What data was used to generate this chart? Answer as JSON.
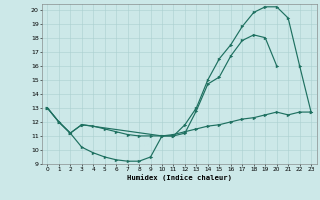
{
  "xlabel": "Humidex (Indice chaleur)",
  "bg_color": "#cce8e8",
  "line_color": "#1e7060",
  "grid_color": "#aad0d0",
  "xlim": [
    -0.5,
    23.5
  ],
  "ylim": [
    9,
    20.4
  ],
  "yticks": [
    9,
    10,
    11,
    12,
    13,
    14,
    15,
    16,
    17,
    18,
    19,
    20
  ],
  "xticks": [
    0,
    1,
    2,
    3,
    4,
    5,
    6,
    7,
    8,
    9,
    10,
    11,
    12,
    13,
    14,
    15,
    16,
    17,
    18,
    19,
    20,
    21,
    22,
    23
  ],
  "curve_low_x": [
    0,
    1,
    2,
    3,
    4,
    5,
    6,
    7,
    8,
    9,
    10,
    11,
    12,
    13,
    14,
    15,
    16,
    17,
    18,
    19,
    20
  ],
  "curve_low_y": [
    13,
    12,
    11.2,
    10.2,
    9.8,
    9.5,
    9.3,
    9.2,
    9.2,
    9.5,
    11.0,
    11.0,
    11.2,
    12.8,
    14.7,
    15.2,
    16.7,
    17.8,
    18.2,
    18.0,
    16.0
  ],
  "curve_mid_x": [
    0,
    1,
    2,
    3,
    4,
    5,
    6,
    7,
    8,
    9,
    10,
    11,
    12,
    13,
    14,
    15,
    16,
    17,
    18,
    19,
    20,
    21,
    22,
    23
  ],
  "curve_mid_y": [
    13,
    12,
    11.2,
    11.8,
    11.7,
    11.5,
    11.3,
    11.1,
    11.0,
    11.0,
    11.0,
    11.1,
    11.3,
    11.5,
    11.7,
    11.8,
    12.0,
    12.2,
    12.3,
    12.5,
    12.7,
    12.5,
    12.7,
    12.7
  ],
  "curve_top_x": [
    0,
    1,
    2,
    3,
    10,
    11,
    12,
    13,
    14,
    15,
    16,
    17,
    18,
    19,
    20,
    21,
    22,
    23
  ],
  "curve_top_y": [
    13,
    12,
    11.2,
    11.8,
    11.0,
    11.0,
    11.8,
    13.0,
    15.0,
    16.5,
    17.5,
    18.8,
    19.8,
    20.2,
    20.2,
    19.4,
    16.0,
    12.7
  ]
}
